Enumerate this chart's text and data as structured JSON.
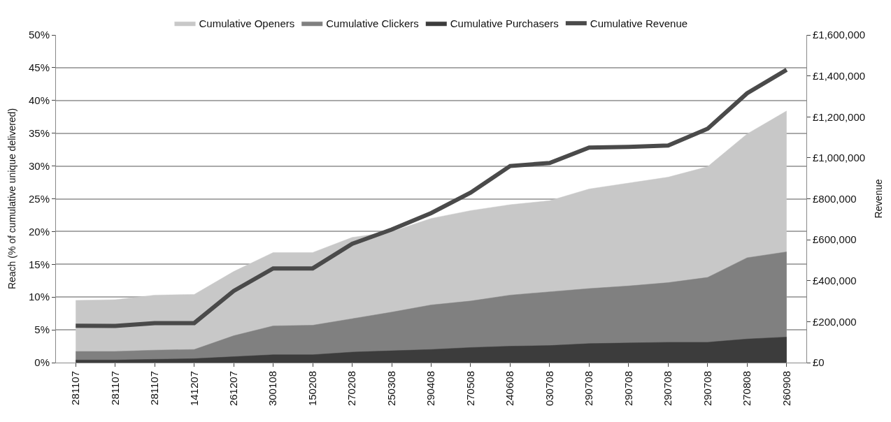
{
  "chart_data": {
    "type": "area",
    "ylabel": "Reach (% of cumulative unique delivered)",
    "y2label": "Revenue",
    "categories": [
      "281107",
      "281107",
      "281107",
      "141207",
      "261207",
      "300108",
      "150208",
      "270208",
      "250308",
      "290408",
      "270508",
      "240608",
      "030708",
      "290708",
      "290708",
      "290708",
      "290708",
      "270808",
      "260908"
    ],
    "series": [
      {
        "name": "Cumulative Openers",
        "color": "#c8c8c8",
        "values": [
          9.5,
          9.6,
          10.3,
          10.4,
          13.9,
          16.8,
          16.8,
          19.1,
          20.0,
          22.0,
          23.2,
          24.1,
          24.7,
          26.5,
          27.4,
          28.3,
          29.9,
          34.9,
          38.4
        ]
      },
      {
        "name": "Cumulative Clickers",
        "color": "#808080",
        "values": [
          1.7,
          1.7,
          1.9,
          2.0,
          4.1,
          5.6,
          5.7,
          6.7,
          7.7,
          8.8,
          9.4,
          10.3,
          10.8,
          11.3,
          11.7,
          12.2,
          13.0,
          16.0,
          16.9
        ]
      },
      {
        "name": "Cumulative Purchasers",
        "color": "#3c3c3c",
        "values": [
          0.4,
          0.4,
          0.5,
          0.6,
          0.9,
          1.2,
          1.2,
          1.6,
          1.8,
          2.0,
          2.3,
          2.5,
          2.6,
          2.9,
          3.0,
          3.1,
          3.1,
          3.6,
          3.9
        ]
      },
      {
        "name": "Cumulative Revenue",
        "color": "#4a4a4a",
        "type": "line",
        "axis": "y2",
        "values": [
          180000,
          179000,
          193000,
          193000,
          350000,
          460000,
          460000,
          580000,
          650000,
          730000,
          830000,
          960000,
          975000,
          1050000,
          1053000,
          1060000,
          1142000,
          1315000,
          1430000
        ]
      }
    ],
    "ylim": [
      0,
      50
    ],
    "yticks": [
      {
        "value": 0,
        "label": "0%"
      },
      {
        "value": 5,
        "label": "5%"
      },
      {
        "value": 10,
        "label": "10%"
      },
      {
        "value": 15,
        "label": "15%"
      },
      {
        "value": 20,
        "label": "20%"
      },
      {
        "value": 25,
        "label": "25%"
      },
      {
        "value": 30,
        "label": "30%"
      },
      {
        "value": 35,
        "label": "35%"
      },
      {
        "value": 40,
        "label": "40%"
      },
      {
        "value": 45,
        "label": "45%"
      },
      {
        "value": 50,
        "label": "50%"
      }
    ],
    "y2lim": [
      0,
      1600000
    ],
    "y2ticks": [
      {
        "value": 0,
        "label": "£0"
      },
      {
        "value": 200000,
        "label": "£200,000"
      },
      {
        "value": 400000,
        "label": "£400,000"
      },
      {
        "value": 600000,
        "label": "£600,000"
      },
      {
        "value": 800000,
        "label": "£800,000"
      },
      {
        "value": 1000000,
        "label": "£1,000,000"
      },
      {
        "value": 1200000,
        "label": "£1,200,000"
      },
      {
        "value": 1400000,
        "label": "£1,400,000"
      },
      {
        "value": 1600000,
        "label": "£1,600,000"
      }
    ],
    "grid": "y",
    "legend": "top",
    "marker": "none",
    "line_style": "solid"
  }
}
